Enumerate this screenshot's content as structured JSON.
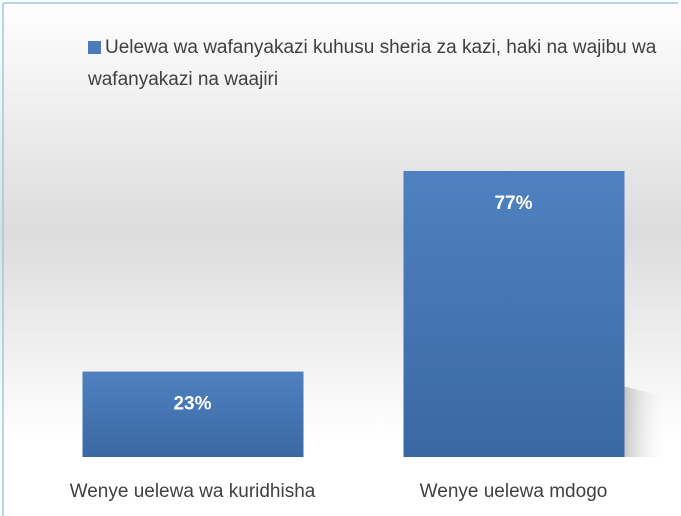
{
  "chart_data": {
    "type": "bar",
    "categories": [
      "Wenye uelewa wa kuridhisha",
      "Wenye uelewa mdogo"
    ],
    "series": [
      {
        "name": "Uelewa wa wafanyakazi kuhusu sheria za kazi, haki na wajibu wa wafanyakazi na waajiri",
        "color": "#4a7ab7",
        "values": [
          23,
          77
        ],
        "value_labels": [
          "23%",
          "77%"
        ]
      }
    ]
  }
}
